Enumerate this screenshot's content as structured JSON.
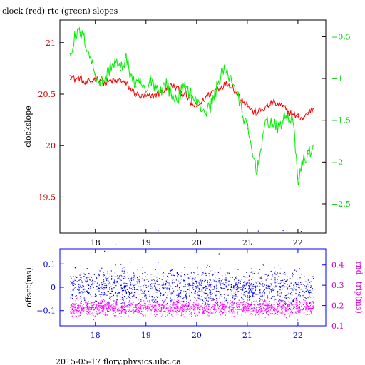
{
  "header": {
    "title": "clock (red) rtc (green) slopes"
  },
  "footer": {
    "text": "2015-05-17 flory.physics.ubc.ca"
  },
  "chart_data": [
    {
      "type": "line",
      "ylabel": "clockslope",
      "xlim": [
        17.3,
        22.55
      ],
      "ylim": [
        19.15,
        21.22
      ],
      "y2lim": [
        -2.85,
        -0.3
      ],
      "grid": false,
      "colors": {
        "left_axis": "#cc0000",
        "right_axis": "#00cc00",
        "frame": "#000000"
      },
      "x_ticks": [
        18,
        19,
        20,
        21,
        22
      ],
      "x_tick_labels": [
        "18",
        "19",
        "20",
        "21",
        "22"
      ],
      "y_ticks": [
        19.5,
        20,
        20.5,
        21
      ],
      "y_tick_labels": [
        "19.5",
        "20",
        "20.5",
        "21"
      ],
      "y2_ticks": [
        -2.5,
        -2,
        -1.5,
        -1,
        -0.5
      ],
      "y2_tick_labels": [
        "−2.5",
        "−2",
        "−1.5",
        "−1",
        "−0.5"
      ],
      "series": [
        {
          "name": "clock",
          "color": "#ff0000",
          "axis": "left",
          "x": [
            17.5,
            17.6,
            17.7,
            17.8,
            17.9,
            18.0,
            18.1,
            18.2,
            18.3,
            18.4,
            18.5,
            18.6,
            18.7,
            18.8,
            18.9,
            19.0,
            19.1,
            19.2,
            19.3,
            19.4,
            19.5,
            19.6,
            19.7,
            19.8,
            19.9,
            20.0,
            20.1,
            20.2,
            20.3,
            20.4,
            20.5,
            20.6,
            20.7,
            20.8,
            20.9,
            21.0,
            21.1,
            21.2,
            21.3,
            21.4,
            21.5,
            21.6,
            21.7,
            21.8,
            21.9,
            22.0,
            22.1,
            22.2,
            22.3
          ],
          "y": [
            20.68,
            20.64,
            20.66,
            20.6,
            20.62,
            20.65,
            20.64,
            20.6,
            20.63,
            20.62,
            20.64,
            20.6,
            20.55,
            20.5,
            20.47,
            20.48,
            20.47,
            20.5,
            20.52,
            20.55,
            20.58,
            20.56,
            20.52,
            20.48,
            20.4,
            20.38,
            20.42,
            20.48,
            20.52,
            20.55,
            20.58,
            20.6,
            20.58,
            20.5,
            20.45,
            20.4,
            20.33,
            20.32,
            20.35,
            20.38,
            20.42,
            20.4,
            20.38,
            20.33,
            20.3,
            20.28,
            20.26,
            20.32,
            20.36
          ]
        },
        {
          "name": "rtc",
          "color": "#00ee00",
          "axis": "right",
          "x": [
            17.5,
            17.6,
            17.7,
            17.8,
            17.9,
            18.0,
            18.1,
            18.2,
            18.3,
            18.4,
            18.5,
            18.6,
            18.7,
            18.8,
            18.9,
            19.0,
            19.1,
            19.2,
            19.3,
            19.4,
            19.5,
            19.6,
            19.7,
            19.8,
            19.9,
            20.0,
            20.1,
            20.2,
            20.3,
            20.4,
            20.5,
            20.6,
            20.7,
            20.8,
            20.9,
            21.0,
            21.1,
            21.2,
            21.3,
            21.4,
            21.5,
            21.6,
            21.7,
            21.8,
            21.9,
            22.0,
            22.1,
            22.2,
            22.3
          ],
          "y": [
            -0.7,
            -0.5,
            -0.45,
            -0.55,
            -0.75,
            -0.95,
            -1.05,
            -1.0,
            -0.85,
            -0.8,
            -0.9,
            -0.75,
            -0.95,
            -1.1,
            -1.05,
            -1.2,
            -1.0,
            -1.1,
            -1.15,
            -1.05,
            -1.2,
            -1.25,
            -1.15,
            -1.1,
            -1.2,
            -1.3,
            -1.35,
            -1.4,
            -1.3,
            -1.1,
            -0.9,
            -0.95,
            -1.0,
            -1.2,
            -1.4,
            -1.6,
            -1.9,
            -2.1,
            -1.7,
            -1.5,
            -1.55,
            -1.6,
            -1.5,
            -1.45,
            -1.5,
            -2.2,
            -2.0,
            -1.9,
            -1.8
          ]
        }
      ]
    },
    {
      "type": "scatter",
      "ylabel": "offset(ms)",
      "y2label": "rnd−trip(ms)",
      "xlim": [
        17.3,
        22.55
      ],
      "ylim": [
        -0.165,
        0.165
      ],
      "y2lim": [
        0.1,
        0.48
      ],
      "grid": false,
      "colors": {
        "left_axis": "#0000cc",
        "right_axis": "#cc00cc",
        "frame": "#0000ff"
      },
      "x_ticks": [
        18,
        19,
        20,
        21,
        22
      ],
      "x_tick_labels": [
        "18",
        "19",
        "20",
        "21",
        "22"
      ],
      "y_ticks": [
        -0.1,
        0,
        0.1
      ],
      "y_tick_labels": [
        "−0.1",
        "0",
        "0.1"
      ],
      "y2_ticks": [
        0.1,
        0.2,
        0.3,
        0.4
      ],
      "y2_tick_labels": [
        "0.1",
        "0.2",
        "0.3",
        "0.4"
      ],
      "series": [
        {
          "name": "offset",
          "color": "#0000ff",
          "axis": "left",
          "x_range": [
            17.5,
            22.3
          ],
          "y_center": 0.0,
          "y_band": [
            -0.05,
            0.05
          ]
        },
        {
          "name": "rnd-trip",
          "color": "#ff00ff",
          "axis": "right",
          "x_range": [
            17.5,
            22.3
          ],
          "y_center": 0.19,
          "y_band": [
            0.17,
            0.22
          ]
        }
      ]
    }
  ]
}
